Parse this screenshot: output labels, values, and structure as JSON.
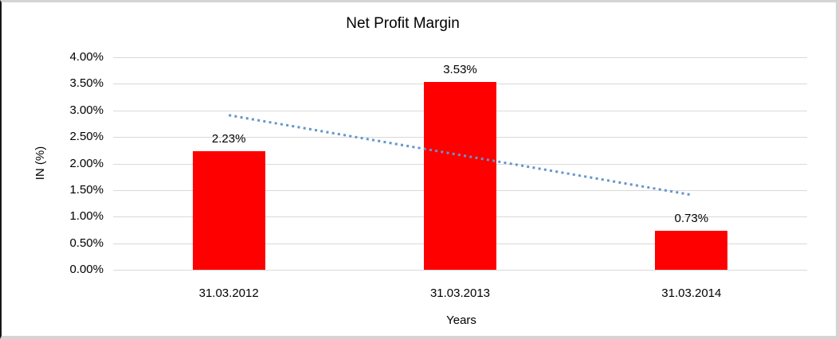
{
  "chart_data": {
    "type": "bar",
    "title": "Net Profit Margin",
    "xlabel": "Years",
    "ylabel": "IN (%)",
    "categories": [
      "31.03.2012",
      "31.03.2013",
      "31.03.2014"
    ],
    "values": [
      2.23,
      3.53,
      0.73
    ],
    "data_labels": [
      "2.23%",
      "3.53%",
      "0.73%"
    ],
    "ylim": [
      0,
      4
    ],
    "ytick_step": 0.5,
    "ytick_labels": [
      "0.00%",
      "0.50%",
      "1.00%",
      "1.50%",
      "2.00%",
      "2.50%",
      "3.00%",
      "3.50%",
      "4.00%"
    ],
    "grid": "horizontal",
    "legend": "none",
    "bar_color": "#ff0000",
    "gridline_color": "#d9d9d9",
    "trendline": {
      "type": "linear",
      "style": "dotted",
      "color": "#6496cb",
      "start_value": 2.91,
      "end_value": 1.41
    }
  }
}
